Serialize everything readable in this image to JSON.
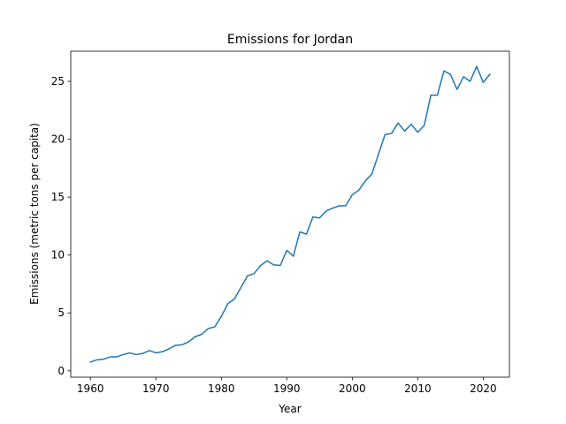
{
  "chart_data": {
    "type": "line",
    "title": "Emissions for Jordan",
    "xlabel": "Year",
    "ylabel": "Emissions (metric tons per capita)",
    "xlim": [
      1957,
      2024
    ],
    "ylim": [
      -0.55,
      27.6
    ],
    "xticks": [
      1960,
      1970,
      1980,
      1990,
      2000,
      2010,
      2020
    ],
    "yticks": [
      0,
      5,
      10,
      15,
      20,
      25
    ],
    "grid": false,
    "legend": "none",
    "series": [
      {
        "color": "#1f77b4",
        "x": [
          1960,
          1961,
          1962,
          1963,
          1964,
          1965,
          1966,
          1967,
          1968,
          1969,
          1970,
          1971,
          1972,
          1973,
          1974,
          1975,
          1976,
          1977,
          1978,
          1979,
          1980,
          1981,
          1982,
          1983,
          1984,
          1985,
          1986,
          1987,
          1988,
          1989,
          1990,
          1991,
          1992,
          1993,
          1994,
          1995,
          1996,
          1997,
          1998,
          1999,
          2000,
          2001,
          2002,
          2003,
          2004,
          2005,
          2006,
          2007,
          2008,
          2009,
          2010,
          2011,
          2012,
          2013,
          2014,
          2015,
          2016,
          2017,
          2018,
          2019,
          2020,
          2021
        ],
        "values": [
          0.75,
          0.95,
          1.0,
          1.2,
          1.2,
          1.4,
          1.55,
          1.4,
          1.5,
          1.75,
          1.55,
          1.65,
          1.9,
          2.2,
          2.25,
          2.5,
          2.95,
          3.15,
          3.65,
          3.8,
          4.7,
          5.8,
          6.2,
          7.2,
          8.2,
          8.4,
          9.1,
          9.5,
          9.15,
          9.1,
          10.4,
          9.9,
          12.0,
          11.8,
          13.3,
          13.2,
          13.8,
          14.05,
          14.25,
          14.25,
          15.2,
          15.6,
          16.4,
          17.0,
          18.7,
          20.4,
          20.5,
          21.4,
          20.7,
          21.3,
          20.6,
          21.2,
          23.8,
          23.8,
          25.9,
          25.6,
          24.3,
          25.4,
          25.0,
          26.3,
          24.9,
          25.6
        ]
      }
    ]
  }
}
